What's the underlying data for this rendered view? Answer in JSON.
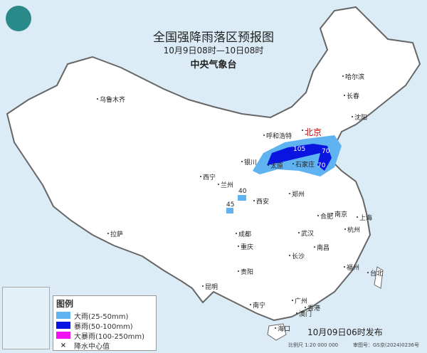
{
  "title": "全国强降雨落区预报图",
  "period": "10月9日08时—10日08时",
  "issuer": "中央气象台",
  "legend": {
    "heading": "图例",
    "items": [
      {
        "label": "大雨(25-50mm)",
        "color": "#5eb3f0"
      },
      {
        "label": "暴雨(50-100mm)",
        "color": "#0a14e0"
      },
      {
        "label": "大暴雨(100-250mm)",
        "color": "#f010f0"
      },
      {
        "label": "降水中心值",
        "icon": "x-mark-icon"
      }
    ]
  },
  "precip_centers": [
    "105",
    "70",
    "70",
    "40",
    "45"
  ],
  "capital": "北京",
  "cities": [
    "乌鲁木齐",
    "哈尔滨",
    "长春",
    "沈阳",
    "呼和浩特",
    "银川",
    "太原",
    "石家庄",
    "西宁",
    "兰州",
    "郑州",
    "西安",
    "合肥",
    "南京",
    "上海",
    "杭州",
    "拉萨",
    "成都",
    "武汉",
    "重庆",
    "长沙",
    "南昌",
    "贵阳",
    "福州",
    "台北",
    "昆明",
    "南宁",
    "广州",
    "香港",
    "澳门",
    "海口"
  ],
  "published": "10月09日06时发布",
  "scale": "比例尺 1:20 000 000",
  "map_number": "审图号：GS京(2024)0236号",
  "colors": {
    "sea": "#dcecf6",
    "land": "#ffffff",
    "border": "#666666"
  }
}
